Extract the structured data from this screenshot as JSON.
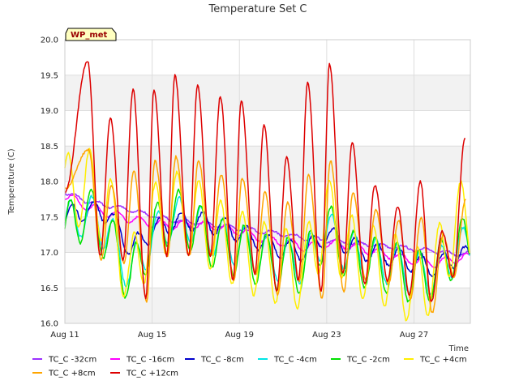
{
  "chart_data": {
    "type": "line",
    "title": "Temperature Set C",
    "xlabel": "Time",
    "ylabel": "Temperature (C)",
    "badge": "WP_met",
    "ylim": [
      16.0,
      20.0
    ],
    "xlim": [
      "2023-08-11",
      "2023-08-29T14:00"
    ],
    "y_ticks": [
      "16.0",
      "16.5",
      "17.0",
      "17.5",
      "18.0",
      "18.5",
      "19.0",
      "19.5",
      "20.0"
    ],
    "x_ticks": [
      "Aug 11",
      "Aug 15",
      "Aug 19",
      "Aug 23",
      "Aug 27"
    ],
    "grid": true,
    "banded_background": true,
    "legend_position": "bottom",
    "colors": {
      "TC_C -32cm": "#9b30ff",
      "TC_C -16cm": "#ff00ff",
      "TC_C -8cm": "#0000cc",
      "TC_C -4cm": "#00e5e5",
      "TC_C -2cm": "#00e000",
      "TC_C +4cm": "#ffee00",
      "TC_C +8cm": "#ffa500",
      "TC_C +12cm": "#dd0000"
    },
    "series": [
      {
        "name": "TC_C -32cm",
        "x": [
          "2023-08-11",
          "2023-08-12",
          "2023-08-13",
          "2023-08-14",
          "2023-08-15",
          "2023-08-16",
          "2023-08-17",
          "2023-08-18",
          "2023-08-19",
          "2023-08-20",
          "2023-08-21",
          "2023-08-22",
          "2023-08-23",
          "2023-08-24",
          "2023-08-25",
          "2023-08-26",
          "2023-08-27",
          "2023-08-28",
          "2023-08-29"
        ],
        "y": [
          17.85,
          17.72,
          17.66,
          17.6,
          17.52,
          17.45,
          17.42,
          17.38,
          17.34,
          17.3,
          17.26,
          17.2,
          17.17,
          17.14,
          17.11,
          17.08,
          17.05,
          17.02,
          16.98
        ]
      },
      {
        "name": "TC_C -16cm",
        "x": [
          "2023-08-11",
          "2023-08-12",
          "2023-08-13",
          "2023-08-14",
          "2023-08-15",
          "2023-08-16",
          "2023-08-17",
          "2023-08-18",
          "2023-08-19",
          "2023-08-20",
          "2023-08-21",
          "2023-08-22",
          "2023-08-23",
          "2023-08-24",
          "2023-08-25",
          "2023-08-26",
          "2023-08-27",
          "2023-08-28",
          "2023-08-29"
        ],
        "y": [
          17.8,
          17.65,
          17.55,
          17.48,
          17.4,
          17.38,
          17.4,
          17.36,
          17.3,
          17.2,
          17.15,
          17.08,
          17.12,
          17.1,
          17.02,
          16.96,
          16.88,
          16.85,
          16.92
        ]
      },
      {
        "name": "TC_C -8cm",
        "x": [
          "2023-08-11",
          "2023-08-12",
          "2023-08-13",
          "2023-08-14",
          "2023-08-15",
          "2023-08-16",
          "2023-08-17",
          "2023-08-18",
          "2023-08-19",
          "2023-08-20",
          "2023-08-21",
          "2023-08-22",
          "2023-08-23",
          "2023-08-24",
          "2023-08-25",
          "2023-08-26",
          "2023-08-27",
          "2023-08-28",
          "2023-08-29"
        ],
        "y": [
          17.5,
          17.6,
          17.55,
          17.05,
          17.3,
          17.42,
          17.45,
          17.38,
          17.28,
          17.15,
          17.05,
          17.02,
          17.25,
          17.1,
          17.0,
          16.95,
          16.85,
          16.8,
          16.95
        ]
      },
      {
        "name": "TC_C -4cm",
        "x": [
          "2023-08-11",
          "2023-08-12",
          "2023-08-13",
          "2023-08-14",
          "2023-08-15",
          "2023-08-16",
          "2023-08-17",
          "2023-08-18",
          "2023-08-19",
          "2023-08-20",
          "2023-08-21",
          "2023-08-22",
          "2023-08-23",
          "2023-08-24",
          "2023-08-25",
          "2023-08-26",
          "2023-08-27",
          "2023-08-28",
          "2023-08-29"
        ],
        "y": [
          17.4,
          17.55,
          17.3,
          16.7,
          17.2,
          17.5,
          17.4,
          17.2,
          17.1,
          16.95,
          16.9,
          16.85,
          17.3,
          17.0,
          16.9,
          16.85,
          16.7,
          16.7,
          17.05
        ]
      },
      {
        "name": "TC_C -2cm",
        "x": [
          "2023-08-11",
          "2023-08-12",
          "2023-08-13",
          "2023-08-14",
          "2023-08-15",
          "2023-08-16",
          "2023-08-17",
          "2023-08-18",
          "2023-08-19",
          "2023-08-20",
          "2023-08-21",
          "2023-08-22",
          "2023-08-23",
          "2023-08-24",
          "2023-08-25",
          "2023-08-26",
          "2023-08-27",
          "2023-08-28",
          "2023-08-29"
        ],
        "y": [
          17.3,
          17.6,
          17.2,
          16.6,
          17.25,
          17.55,
          17.35,
          17.1,
          17.05,
          16.9,
          16.85,
          16.8,
          17.35,
          16.95,
          16.85,
          16.8,
          16.65,
          16.7,
          17.1
        ]
      },
      {
        "name": "TC_C +4cm",
        "x": [
          "2023-08-11",
          "2023-08-12",
          "2023-08-13",
          "2023-08-14",
          "2023-08-15",
          "2023-08-16",
          "2023-08-17",
          "2023-08-18",
          "2023-08-19",
          "2023-08-20",
          "2023-08-21",
          "2023-08-22",
          "2023-08-23",
          "2023-08-24",
          "2023-08-25",
          "2023-08-26",
          "2023-08-27",
          "2023-08-28",
          "2023-08-29"
        ],
        "y": [
          17.85,
          17.95,
          17.6,
          16.6,
          17.4,
          17.6,
          17.5,
          17.2,
          17.05,
          16.9,
          16.8,
          16.75,
          17.55,
          17.0,
          16.85,
          16.75,
          16.5,
          16.75,
          17.45
        ]
      },
      {
        "name": "TC_C +8cm",
        "x": [
          "2023-08-11",
          "2023-08-12",
          "2023-08-13",
          "2023-08-14",
          "2023-08-15",
          "2023-08-16",
          "2023-08-17",
          "2023-08-18",
          "2023-08-19",
          "2023-08-20",
          "2023-08-21",
          "2023-08-22",
          "2023-08-23",
          "2023-08-24",
          "2023-08-25",
          "2023-08-26",
          "2023-08-27",
          "2023-08-28",
          "2023-08-29"
        ],
        "y": [
          17.9,
          18.1,
          17.7,
          16.7,
          17.6,
          17.8,
          17.7,
          17.3,
          17.2,
          17.0,
          16.9,
          16.95,
          17.8,
          17.1,
          16.95,
          16.8,
          16.5,
          16.9,
          17.75
        ]
      },
      {
        "name": "TC_C +12cm",
        "x": [
          "2023-08-11",
          "2023-08-12",
          "2023-08-13",
          "2023-08-14",
          "2023-08-15",
          "2023-08-16",
          "2023-08-17",
          "2023-08-18",
          "2023-08-19",
          "2023-08-20",
          "2023-08-21",
          "2023-08-22",
          "2023-08-23",
          "2023-08-24",
          "2023-08-25",
          "2023-08-26",
          "2023-08-27",
          "2023-08-28",
          "2023-08-29"
        ],
        "y": [
          17.85,
          18.7,
          18.0,
          16.8,
          18.1,
          18.3,
          18.4,
          17.7,
          17.8,
          17.35,
          17.2,
          17.8,
          18.5,
          17.45,
          17.15,
          16.95,
          16.75,
          17.25,
          18.3
        ]
      }
    ],
    "daily_peaks": {
      "TC_C +12cm": {
        "x": [
          "2023-08-12T01:00",
          "2023-08-13T02:00",
          "2023-08-14T03:00",
          "2023-08-15T02:00",
          "2023-08-16T01:00",
          "2023-08-17T02:00",
          "2023-08-18T03:00",
          "2023-08-19T02:00",
          "2023-08-20T03:00",
          "2023-08-21T04:00",
          "2023-08-22T03:00",
          "2023-08-23T03:00",
          "2023-08-24T04:00",
          "2023-08-25T05:00",
          "2023-08-26T06:00",
          "2023-08-27T07:00",
          "2023-08-28T07:00",
          "2023-08-29T08:00"
        ],
        "y": [
          19.7,
          18.9,
          19.3,
          19.3,
          19.5,
          19.35,
          19.2,
          19.15,
          18.8,
          18.35,
          19.4,
          19.65,
          18.55,
          17.95,
          17.65,
          18.0,
          17.3,
          18.6
        ]
      },
      "TC_C +8cm": {
        "x": [
          "2023-08-12T02:00",
          "2023-08-13T03:00",
          "2023-08-14T04:00",
          "2023-08-15T03:00",
          "2023-08-16T02:00",
          "2023-08-17T03:00",
          "2023-08-18T04:00",
          "2023-08-19T03:00",
          "2023-08-20T04:00",
          "2023-08-21T05:00",
          "2023-08-22T04:00",
          "2023-08-23T04:00",
          "2023-08-24T05:00",
          "2023-08-25T06:00",
          "2023-08-26T07:00",
          "2023-08-27T08:00",
          "2023-08-28T08:00",
          "2023-08-29T09:00"
        ],
        "y": [
          18.45,
          17.95,
          18.15,
          18.3,
          18.35,
          18.3,
          18.1,
          18.05,
          17.85,
          17.7,
          18.1,
          18.3,
          17.85,
          17.6,
          17.45,
          17.5,
          17.25,
          17.75
        ]
      }
    },
    "daily_troughs": {
      "TC_C +12cm": {
        "x": [
          "2023-08-12T15:00",
          "2023-08-13T16:00",
          "2023-08-14T17:00",
          "2023-08-15T16:00",
          "2023-08-16T16:00",
          "2023-08-17T16:00",
          "2023-08-18T17:00",
          "2023-08-19T17:00",
          "2023-08-20T17:00",
          "2023-08-21T17:00",
          "2023-08-22T18:00",
          "2023-08-23T18:00",
          "2023-08-24T18:00",
          "2023-08-25T19:00",
          "2023-08-26T19:00",
          "2023-08-27T19:00",
          "2023-08-28T19:00"
        ],
        "y": [
          16.95,
          16.9,
          16.35,
          16.95,
          16.95,
          16.95,
          16.6,
          16.7,
          16.45,
          16.6,
          16.45,
          16.7,
          16.55,
          16.6,
          16.4,
          16.3,
          16.65
        ]
      },
      "TC_C +8cm": {
        "x": [
          "2023-08-12T16:00",
          "2023-08-13T17:00",
          "2023-08-14T18:00",
          "2023-08-15T17:00",
          "2023-08-16T17:00",
          "2023-08-17T17:00",
          "2023-08-18T18:00",
          "2023-08-19T18:00",
          "2023-08-20T18:00",
          "2023-08-21T18:00",
          "2023-08-22T19:00",
          "2023-08-23T19:00",
          "2023-08-24T19:00",
          "2023-08-25T20:00",
          "2023-08-26T20:00",
          "2023-08-27T20:00",
          "2023-08-28T20:00"
        ],
        "y": [
          16.9,
          16.85,
          16.3,
          16.95,
          16.95,
          16.95,
          16.6,
          16.7,
          16.4,
          16.6,
          16.35,
          16.45,
          16.6,
          16.55,
          16.35,
          16.15,
          16.65
        ]
      }
    }
  }
}
